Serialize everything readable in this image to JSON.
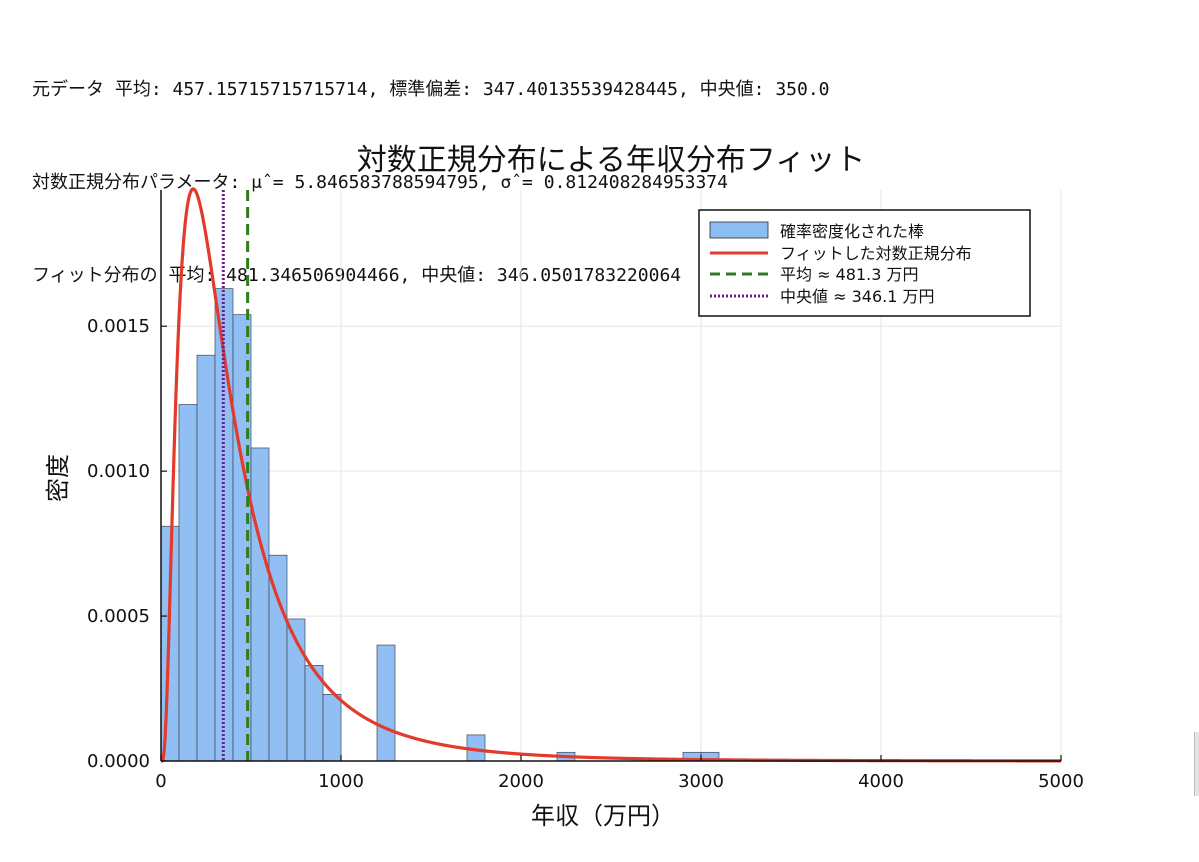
{
  "stats": {
    "line1": "元データ 平均: 457.15715715715714, 標準偏差: 347.40135539428445, 中央値: 350.0",
    "line2": "対数正規分布パラメータ: μ̂ = 5.846583788594795, σ̂ = 0.812408284953374",
    "line3": "フィット分布の 平均: 481.346506904466, 中央値: 346.0501783220064"
  },
  "chart_data": {
    "type": "bar",
    "title": "対数正規分布による年収分布フィット",
    "xlabel": "年収（万円）",
    "ylabel": "密度",
    "xlim": [
      0,
      5000
    ],
    "ylim": [
      0,
      0.00197
    ],
    "xticks": [
      0,
      1000,
      2000,
      3000,
      4000,
      5000
    ],
    "xtick_labels": [
      "0",
      "1000",
      "2000",
      "3000",
      "4000",
      "5000"
    ],
    "yticks": [
      0,
      0.0005,
      0.001,
      0.0015
    ],
    "ytick_labels": [
      "0.0000",
      "0.0005",
      "0.0010",
      "0.0015"
    ],
    "grid": true,
    "legend_position": "top-right",
    "histogram": {
      "name": "確率密度化された棒",
      "color": "#8bbcf2",
      "bin_width": 100,
      "bin_starts": [
        0,
        100,
        200,
        300,
        400,
        500,
        600,
        700,
        800,
        900,
        1200,
        1700,
        2200,
        2900,
        3000
      ],
      "values": [
        0.00081,
        0.00123,
        0.0014,
        0.00163,
        0.00154,
        0.00108,
        0.00071,
        0.00049,
        0.00033,
        0.00023,
        0.0004,
        9e-05,
        3e-05,
        3e-05,
        3e-05
      ]
    },
    "fit": {
      "name": "フィットした対数正規分布",
      "color": "#e23a2b",
      "mu": 5.846583788594795,
      "sigma": 0.812408284953374
    },
    "mean_line": {
      "name": "平均 ≈ 481.3 万円",
      "x": 481.3,
      "color": "#2d7d1c"
    },
    "median_line": {
      "name": "中央値 ≈ 346.1 万円",
      "x": 346.1,
      "color": "#6f1d8c"
    }
  }
}
